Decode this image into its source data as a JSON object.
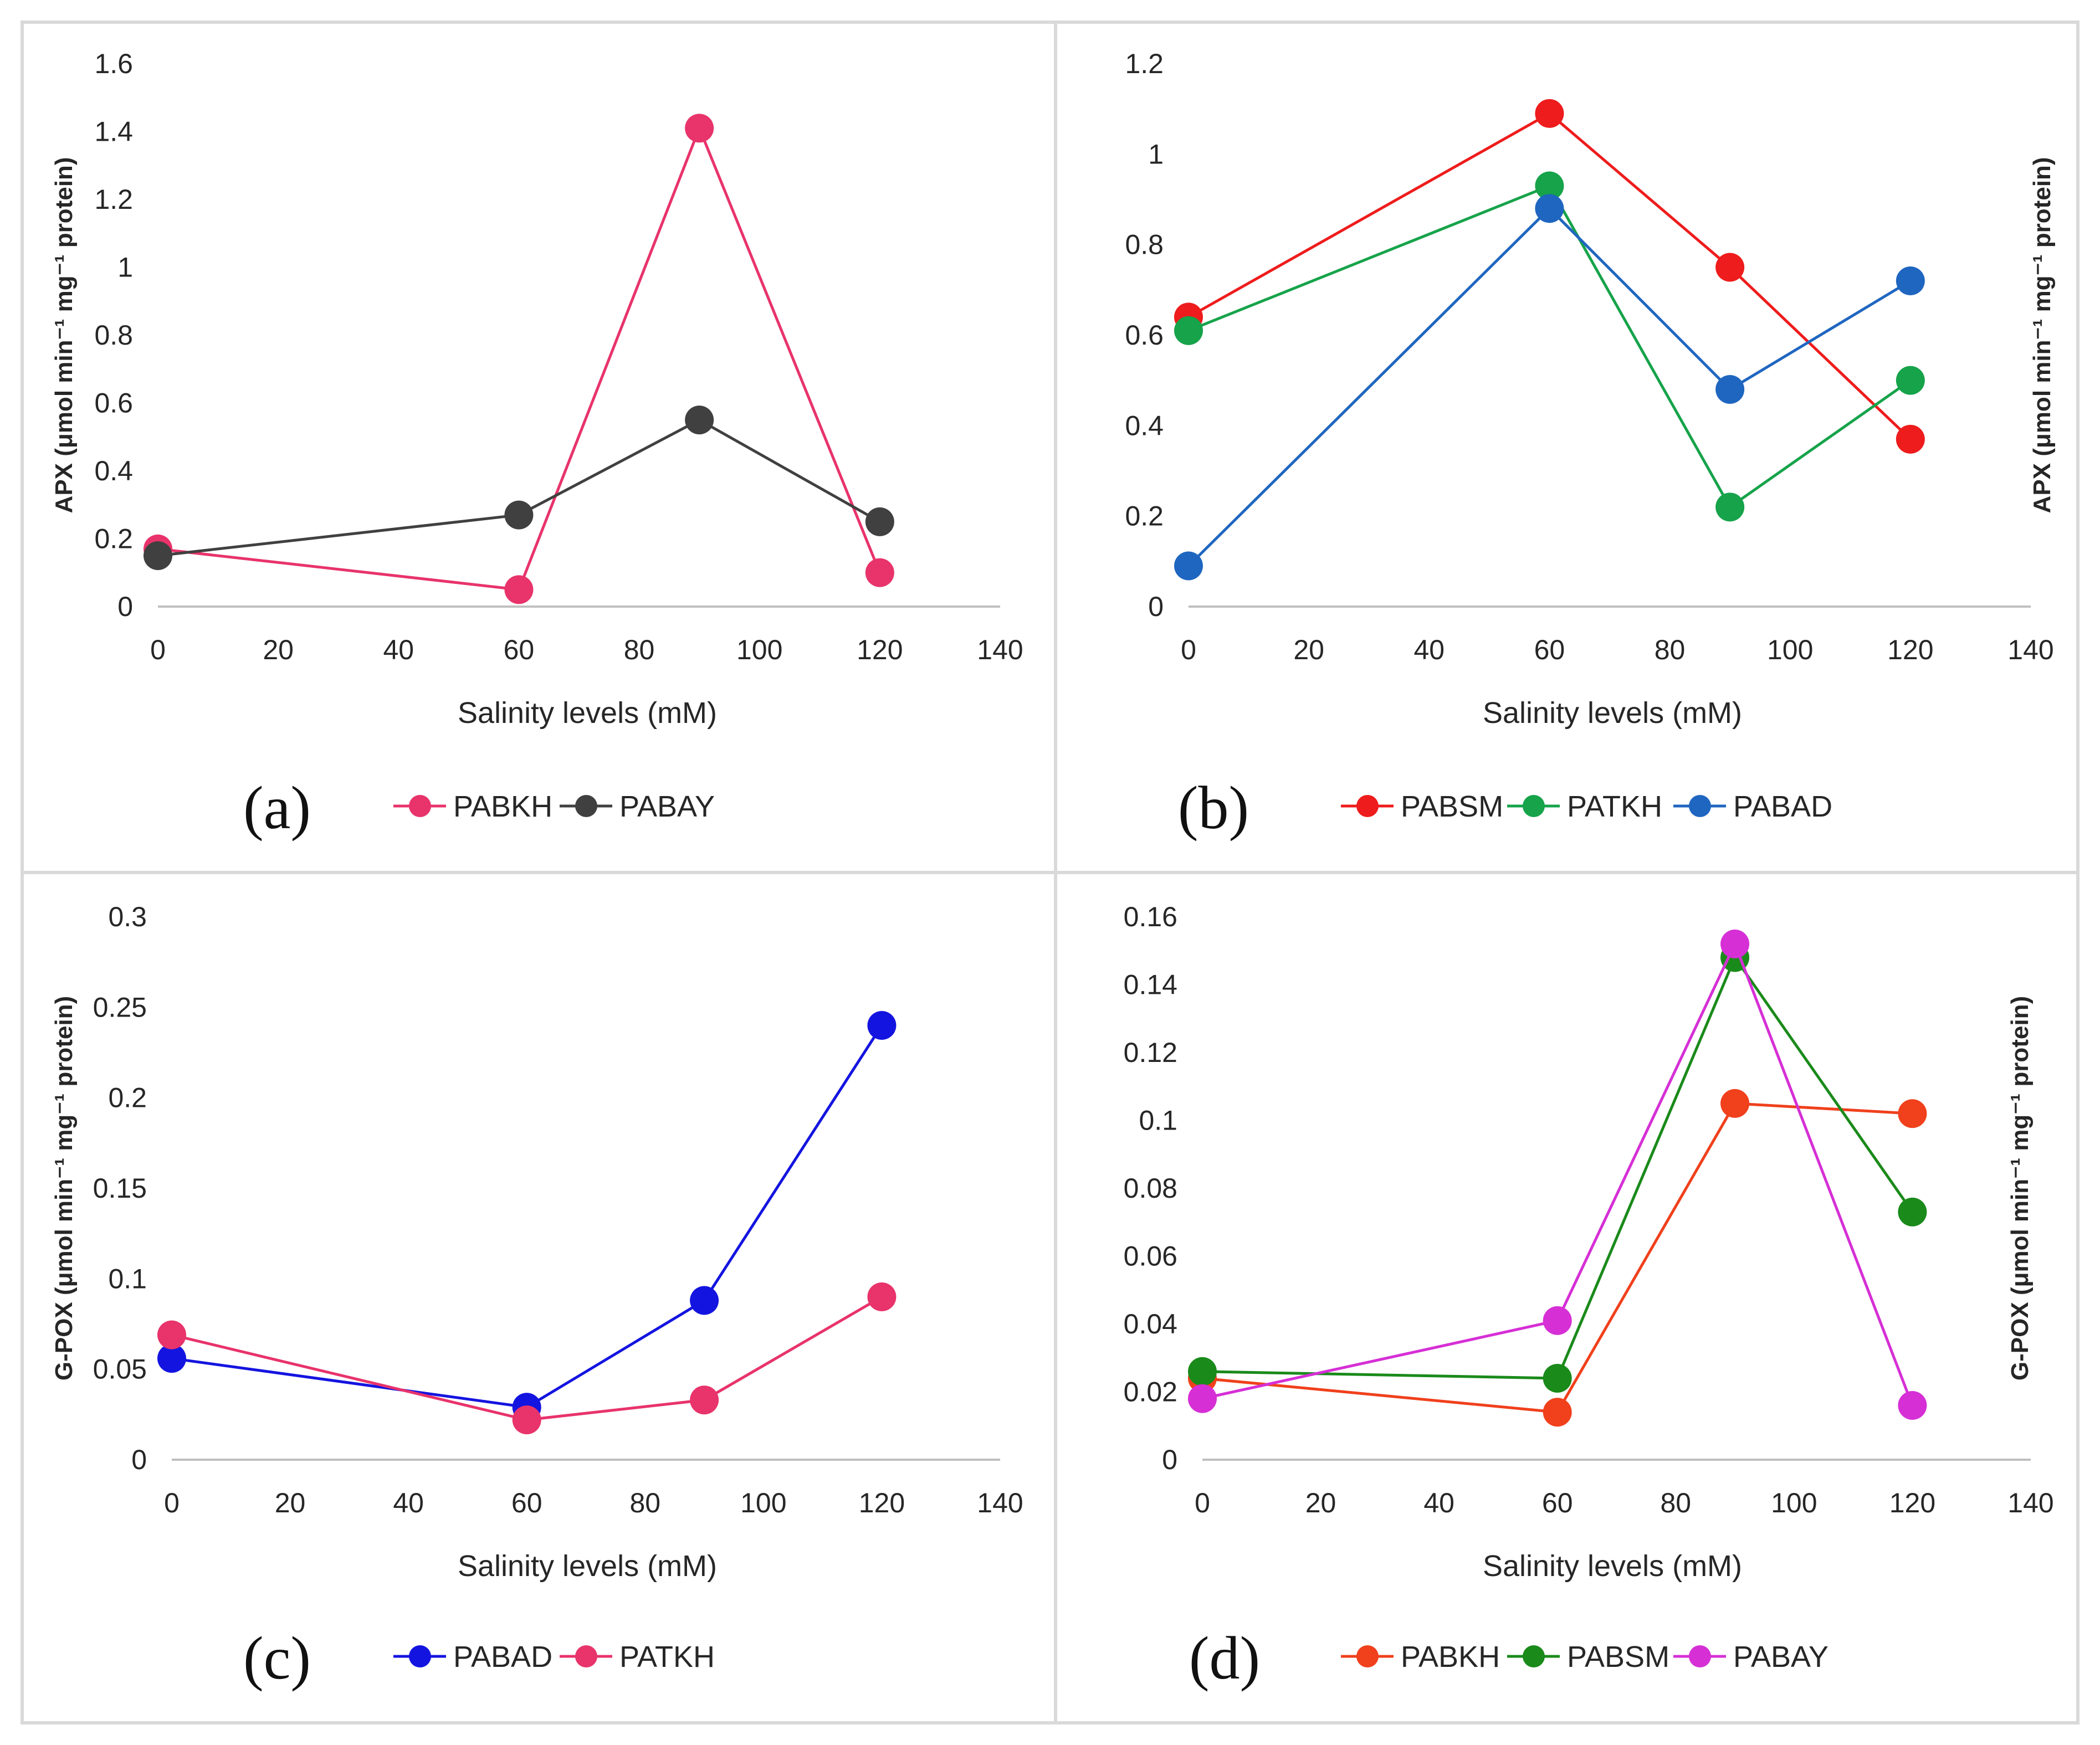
{
  "chart_data": [
    {
      "type": "line",
      "panel_label": "(a)",
      "xlabel": "Salinity levels (mM)",
      "ylabel": "APX (μmol min⁻¹ mg⁻¹ protein)",
      "ylabel_side": "left",
      "xlim": [
        0,
        140
      ],
      "ylim": [
        0,
        1.6
      ],
      "xticks": [
        "0",
        "20",
        "40",
        "60",
        "80",
        "100",
        "120",
        "140"
      ],
      "yticks": [
        "0",
        "0.2",
        "0.4",
        "0.6",
        "0.8",
        "1",
        "1.2",
        "1.4",
        "1.6"
      ],
      "legend_position": "bottom",
      "series": [
        {
          "name": "PABKH",
          "color": "#e8336b",
          "x": [
            0,
            60,
            90,
            120
          ],
          "y": [
            0.17,
            0.05,
            1.41,
            0.1
          ]
        },
        {
          "name": "PABAY",
          "color": "#404040",
          "x": [
            0,
            60,
            90,
            120
          ],
          "y": [
            0.15,
            0.27,
            0.55,
            0.25
          ]
        }
      ]
    },
    {
      "type": "line",
      "panel_label": "(b)",
      "xlabel": "Salinity levels (mM)",
      "ylabel": "APX (μmol min⁻¹ mg⁻¹ protein)",
      "ylabel_side": "right",
      "xlim": [
        0,
        140
      ],
      "ylim": [
        0,
        1.2
      ],
      "xticks": [
        "0",
        "20",
        "40",
        "60",
        "80",
        "100",
        "120",
        "140"
      ],
      "yticks": [
        "0",
        "0.2",
        "0.4",
        "0.6",
        "0.8",
        "1",
        "1.2"
      ],
      "legend_position": "bottom",
      "series": [
        {
          "name": "PABSM",
          "color": "#ee1c1c",
          "x": [
            0,
            60,
            90,
            120
          ],
          "y": [
            0.64,
            1.09,
            0.75,
            0.37
          ]
        },
        {
          "name": "PATKH",
          "color": "#16a34a",
          "x": [
            0,
            60,
            90,
            120
          ],
          "y": [
            0.61,
            0.93,
            0.22,
            0.5
          ]
        },
        {
          "name": "PABAD",
          "color": "#1f66c0",
          "x": [
            0,
            60,
            90,
            120
          ],
          "y": [
            0.09,
            0.88,
            0.48,
            0.72
          ]
        }
      ]
    },
    {
      "type": "line",
      "panel_label": "(c)",
      "xlabel": "Salinity levels (mM)",
      "ylabel": "G-POX (μmol min⁻¹ mg⁻¹ protein)",
      "ylabel_side": "left",
      "xlim": [
        0,
        140
      ],
      "ylim": [
        0,
        0.3
      ],
      "xticks": [
        "0",
        "20",
        "40",
        "60",
        "80",
        "100",
        "120",
        "140"
      ],
      "yticks": [
        "0",
        "0.05",
        "0.1",
        "0.15",
        "0.2",
        "0.25",
        "0.3"
      ],
      "legend_position": "bottom",
      "series": [
        {
          "name": "PABAD",
          "color": "#1414e0",
          "x": [
            0,
            60,
            90,
            120
          ],
          "y": [
            0.056,
            0.029,
            0.088,
            0.24
          ]
        },
        {
          "name": "PATKH",
          "color": "#e8336b",
          "x": [
            0,
            60,
            90,
            120
          ],
          "y": [
            0.069,
            0.022,
            0.033,
            0.09
          ]
        }
      ]
    },
    {
      "type": "line",
      "panel_label": "(d)",
      "xlabel": "Salinity levels (mM)",
      "ylabel": "G-POX (μmol min⁻¹ mg⁻¹ protein)",
      "ylabel_side": "right",
      "xlim": [
        0,
        140
      ],
      "ylim": [
        0,
        0.16
      ],
      "xticks": [
        "0",
        "20",
        "40",
        "60",
        "80",
        "100",
        "120",
        "140"
      ],
      "yticks": [
        "0",
        "0.02",
        "0.04",
        "0.06",
        "0.08",
        "0.1",
        "0.12",
        "0.14",
        "0.16"
      ],
      "legend_position": "bottom",
      "series": [
        {
          "name": "PABKH",
          "color": "#f0401c",
          "x": [
            0,
            60,
            90,
            120
          ],
          "y": [
            0.024,
            0.014,
            0.105,
            0.102
          ]
        },
        {
          "name": "PABSM",
          "color": "#1a8a1a",
          "x": [
            0,
            60,
            90,
            120
          ],
          "y": [
            0.026,
            0.024,
            0.148,
            0.073
          ]
        },
        {
          "name": "PABAY",
          "color": "#d62fd6",
          "x": [
            0,
            60,
            90,
            120
          ],
          "y": [
            0.018,
            0.041,
            0.152,
            0.016
          ]
        }
      ]
    }
  ]
}
